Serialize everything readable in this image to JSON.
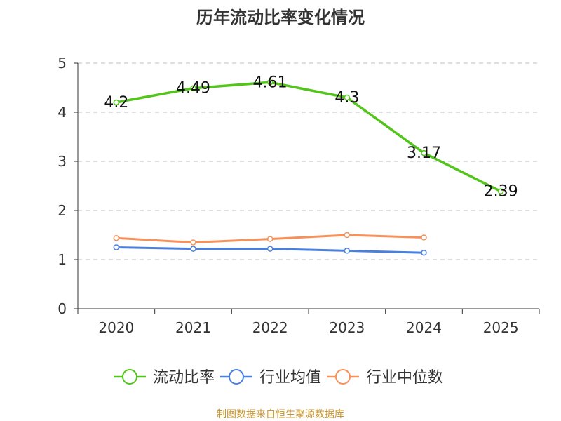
{
  "chart_data": {
    "type": "line",
    "title": "历年流动比率变化情况",
    "categories": [
      "2020",
      "2021",
      "2022",
      "2023",
      "2024",
      "2025"
    ],
    "ylim": [
      0,
      5
    ],
    "yticks": [
      0,
      1,
      2,
      3,
      4,
      5
    ],
    "grid": true,
    "legend_position": "bottom",
    "series": [
      {
        "name": "流动比率",
        "color": "#52c41a",
        "values": [
          4.2,
          4.49,
          4.61,
          4.3,
          3.17,
          2.39
        ],
        "labels": [
          "4.2",
          "4.49",
          "4.61",
          "4.3",
          "3.17",
          "2.39"
        ]
      },
      {
        "name": "行业均值",
        "color": "#4a7fdc",
        "values": [
          1.25,
          1.22,
          1.22,
          1.18,
          1.14,
          null
        ]
      },
      {
        "name": "行业中位数",
        "color": "#f7915a",
        "values": [
          1.44,
          1.35,
          1.42,
          1.5,
          1.45,
          null
        ]
      }
    ],
    "source": "制图数据来自恒生聚源数据库",
    "source_color": "#c8962e"
  }
}
